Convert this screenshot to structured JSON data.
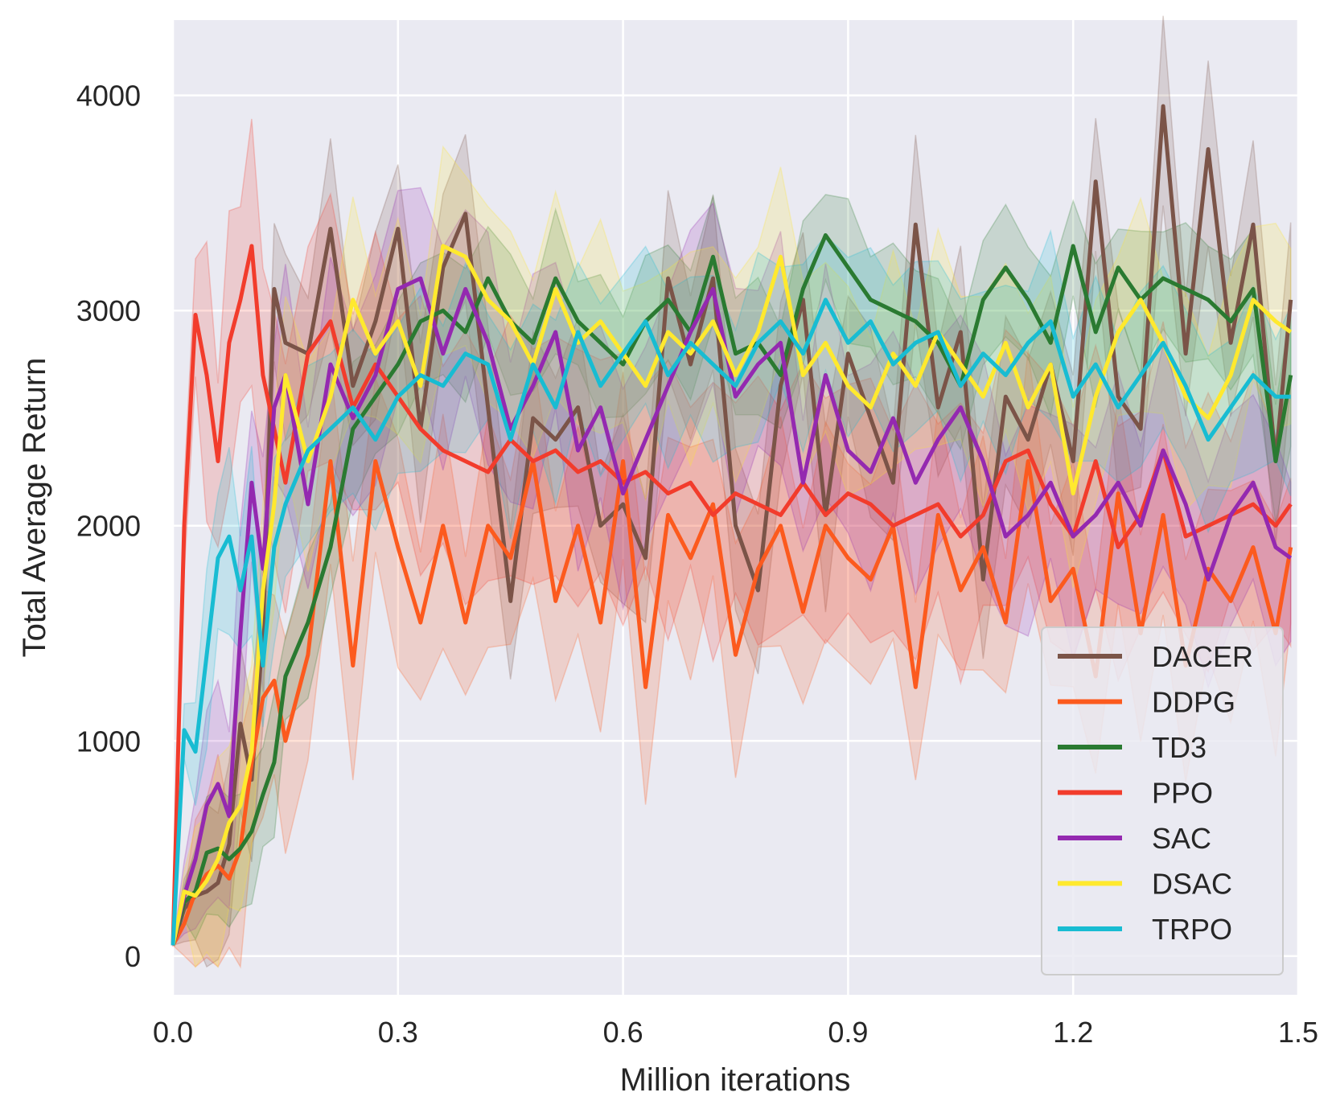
{
  "chart_data": {
    "type": "line",
    "xlabel": "Million iterations",
    "ylabel": "Total Average Return",
    "xlim": [
      0,
      1.5
    ],
    "ylim": [
      -180,
      4350
    ],
    "xticks": [
      "0.0",
      "0.3",
      "0.6",
      "0.9",
      "1.2",
      "1.5"
    ],
    "yticks": [
      "0",
      "1000",
      "2000",
      "3000",
      "4000"
    ],
    "grid": true,
    "legend_position": "bottom-right",
    "x": [
      0.0,
      0.015,
      0.03,
      0.045,
      0.06,
      0.075,
      0.09,
      0.105,
      0.12,
      0.135,
      0.15,
      0.18,
      0.21,
      0.24,
      0.27,
      0.3,
      0.33,
      0.36,
      0.39,
      0.42,
      0.45,
      0.48,
      0.51,
      0.54,
      0.57,
      0.6,
      0.63,
      0.66,
      0.69,
      0.72,
      0.75,
      0.78,
      0.81,
      0.84,
      0.87,
      0.9,
      0.93,
      0.96,
      0.99,
      1.02,
      1.05,
      1.08,
      1.11,
      1.14,
      1.17,
      1.2,
      1.23,
      1.26,
      1.29,
      1.32,
      1.35,
      1.38,
      1.41,
      1.44,
      1.47,
      1.49
    ],
    "series": [
      {
        "name": "DACER",
        "color": "#7b5448",
        "band": 420,
        "values": [
          50,
          220,
          280,
          300,
          340,
          520,
          1080,
          820,
          1500,
          3100,
          2850,
          2800,
          3380,
          2650,
          2950,
          3380,
          2450,
          3200,
          3450,
          2550,
          1650,
          2500,
          2400,
          2550,
          2000,
          2100,
          1850,
          3150,
          2750,
          3150,
          2000,
          1700,
          2650,
          3050,
          2050,
          2800,
          2500,
          2200,
          3400,
          2550,
          2900,
          1750,
          2600,
          2400,
          2750,
          2300,
          3600,
          2600,
          2450,
          3950,
          2800,
          3750,
          2850,
          3400,
          2300,
          3050
        ]
      },
      {
        "name": "DDPG",
        "color": "#fc5a1e",
        "band": 520,
        "values": [
          50,
          150,
          300,
          380,
          420,
          360,
          500,
          900,
          1200,
          1280,
          1000,
          1400,
          2300,
          1350,
          2300,
          1900,
          1550,
          2000,
          1550,
          2000,
          1850,
          2300,
          1650,
          2000,
          1550,
          2300,
          1250,
          2050,
          1850,
          2100,
          1400,
          1800,
          2000,
          1600,
          2000,
          1850,
          1750,
          2000,
          1250,
          2050,
          1700,
          1900,
          1550,
          2300,
          1650,
          1800,
          1300,
          2150,
          1500,
          2050,
          1350,
          1800,
          1650,
          1900,
          1500,
          1900
        ]
      },
      {
        "name": "TD3",
        "color": "#2a7a31",
        "band": 320,
        "values": [
          50,
          250,
          300,
          480,
          500,
          450,
          500,
          580,
          750,
          900,
          1300,
          1550,
          1900,
          2450,
          2600,
          2750,
          2950,
          3000,
          2900,
          3150,
          2950,
          2850,
          3150,
          2950,
          2850,
          2750,
          2950,
          3050,
          2900,
          3250,
          2800,
          2850,
          2700,
          3100,
          3350,
          3200,
          3050,
          3000,
          2950,
          2850,
          2650,
          3050,
          3200,
          3050,
          2850,
          3300,
          2900,
          3200,
          3050,
          3150,
          3100,
          3050,
          2950,
          3100,
          2300,
          2700
        ]
      },
      {
        "name": "PPO",
        "color": "#f23c2c",
        "band": 620,
        "values": [
          50,
          2000,
          2980,
          2700,
          2300,
          2850,
          3050,
          3300,
          2700,
          2450,
          2200,
          2800,
          2950,
          2550,
          2750,
          2600,
          2450,
          2350,
          2300,
          2250,
          2400,
          2300,
          2350,
          2250,
          2300,
          2200,
          2250,
          2150,
          2200,
          2050,
          2150,
          2100,
          2050,
          2200,
          2050,
          2150,
          2100,
          2000,
          2050,
          2100,
          1950,
          2050,
          2300,
          2350,
          2100,
          1950,
          2300,
          1900,
          2050,
          2350,
          1950,
          2000,
          2050,
          2100,
          2000,
          2100
        ]
      },
      {
        "name": "SAC",
        "color": "#9429b0",
        "band": 520,
        "values": [
          50,
          280,
          450,
          700,
          800,
          650,
          1500,
          2200,
          1800,
          2550,
          2700,
          2100,
          2750,
          2500,
          2700,
          3100,
          3150,
          2800,
          3100,
          2850,
          2450,
          2650,
          2900,
          2350,
          2550,
          2150,
          2400,
          2650,
          2900,
          3100,
          2600,
          2750,
          2850,
          2200,
          2700,
          2350,
          2250,
          2500,
          2200,
          2400,
          2550,
          2300,
          1950,
          2050,
          2200,
          1950,
          2050,
          2200,
          2000,
          2350,
          2100,
          1750,
          2050,
          2200,
          1900,
          1850
        ]
      },
      {
        "name": "DSAC",
        "color": "#ffe92e",
        "band": 480,
        "values": [
          50,
          300,
          280,
          350,
          450,
          620,
          700,
          950,
          1700,
          2100,
          2700,
          2300,
          2600,
          3050,
          2800,
          2950,
          2650,
          3300,
          3250,
          3050,
          2950,
          2750,
          3100,
          2850,
          2950,
          2800,
          2650,
          2900,
          2800,
          2950,
          2700,
          2900,
          3250,
          2700,
          2850,
          2650,
          2550,
          2800,
          2650,
          2900,
          2750,
          2600,
          2850,
          2550,
          2750,
          2150,
          2600,
          2900,
          3050,
          2850,
          2600,
          2500,
          2700,
          3050,
          2950,
          2900
        ]
      },
      {
        "name": "TRPO",
        "color": "#18bcd2",
        "band": 420,
        "values": [
          50,
          1050,
          950,
          1400,
          1850,
          1950,
          1700,
          1950,
          1350,
          1900,
          2100,
          2350,
          2450,
          2550,
          2400,
          2600,
          2700,
          2650,
          2800,
          2750,
          2400,
          2750,
          2550,
          2900,
          2650,
          2800,
          2950,
          2700,
          2850,
          2750,
          2650,
          2850,
          2950,
          2800,
          3050,
          2850,
          2950,
          2750,
          2850,
          2900,
          2650,
          2800,
          2700,
          2850,
          2950,
          2600,
          2750,
          2550,
          2700,
          2850,
          2650,
          2400,
          2550,
          2700,
          2600,
          2600
        ]
      }
    ]
  }
}
